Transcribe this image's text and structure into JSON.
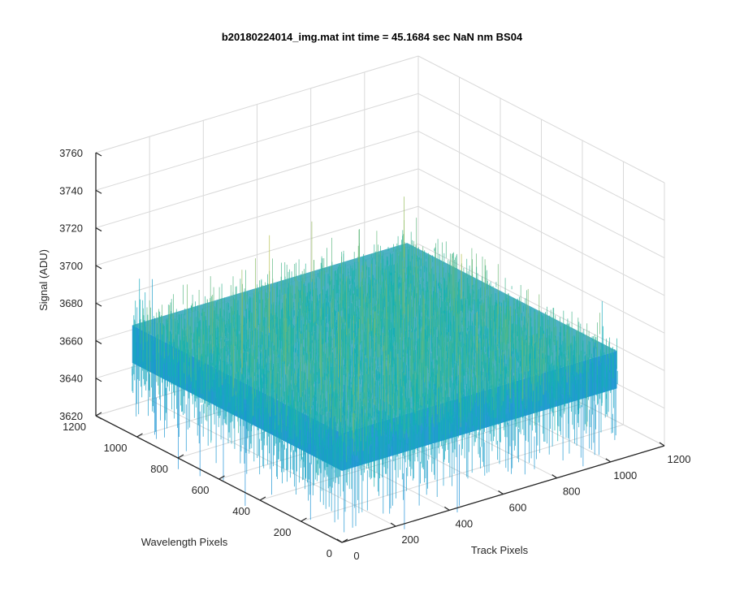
{
  "chart_data": {
    "type": "surface-3d",
    "title": "b20180224014_img.mat int time = 45.1684 sec  NaN nm BS04",
    "xlabel": "Track Pixels",
    "ylabel": "Wavelength Pixels",
    "zlabel": "Signal (ADU)",
    "xlim": [
      0,
      1200
    ],
    "ylim": [
      0,
      1200
    ],
    "zlim": [
      3620,
      3760
    ],
    "x_ticks": [
      0,
      200,
      400,
      600,
      800,
      1000,
      1200
    ],
    "y_ticks": [
      0,
      200,
      400,
      600,
      800,
      1000,
      1200
    ],
    "z_ticks": [
      3620,
      3640,
      3660,
      3680,
      3700,
      3720,
      3740,
      3760
    ],
    "x_tick_labels": [
      "0",
      "200",
      "400",
      "600",
      "800",
      "1000",
      "1200"
    ],
    "y_tick_labels": [
      "0",
      "200",
      "400",
      "600",
      "800",
      "1000",
      "1200"
    ],
    "z_tick_labels": [
      "3620",
      "3640",
      "3660",
      "3680",
      "3700",
      "3720",
      "3740",
      "3760"
    ],
    "surface": {
      "x_range": [
        1,
        1024
      ],
      "y_range": [
        1,
        1024
      ],
      "mean_signal": 3670,
      "noise_range": [
        3630,
        3720
      ]
    },
    "grid": true,
    "colormap": "parula",
    "colors": {
      "surface_low": "#1e90d8",
      "surface_mid": "#12b3b0",
      "surface_high": "#d6c238",
      "grid": "#d9d9d9",
      "axis": "#262626"
    }
  }
}
